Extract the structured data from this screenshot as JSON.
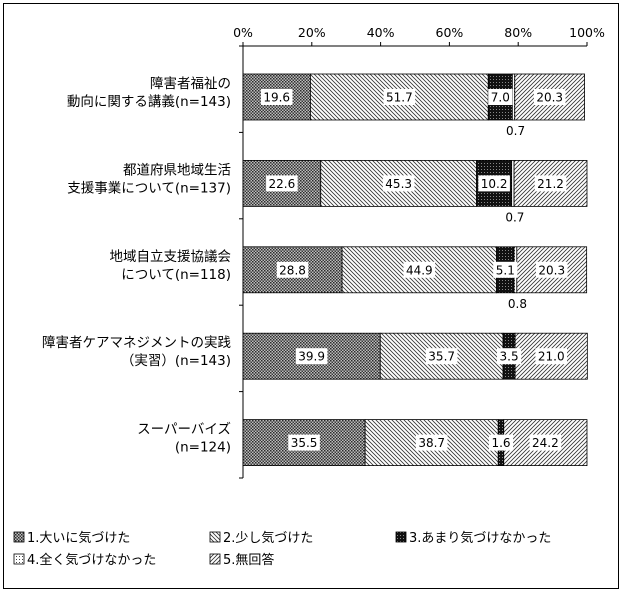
{
  "chart_data": {
    "type": "bar",
    "orientation": "horizontal",
    "stacked": "percent",
    "xlim": [
      0,
      100
    ],
    "x_ticks": [
      "0%",
      "20%",
      "40%",
      "60%",
      "80%",
      "100%"
    ],
    "x_tick_values": [
      0,
      20,
      40,
      60,
      80,
      100
    ],
    "categories": [
      {
        "lines": [
          "障害者福祉の",
          "動向に関する講義(n=143)"
        ]
      },
      {
        "lines": [
          "都道府県地域生活",
          "支援事業について(n=137)"
        ]
      },
      {
        "lines": [
          "地域自立支援協議会",
          "について(n=118)"
        ]
      },
      {
        "lines": [
          "障害者ケアマネジメントの実践",
          "（実習）(n=143)"
        ]
      },
      {
        "lines": [
          "スーパーバイズ",
          "(n=124)"
        ]
      }
    ],
    "series": [
      {
        "name": "1.大いに気づけた",
        "values": [
          19.6,
          22.6,
          28.8,
          39.9,
          35.5
        ]
      },
      {
        "name": "2.少し気づけた",
        "values": [
          51.7,
          45.3,
          44.9,
          35.7,
          38.7
        ]
      },
      {
        "name": "3.あまり気づけなかった",
        "values": [
          7.0,
          10.2,
          5.1,
          3.5,
          1.6
        ]
      },
      {
        "name": "4.全く気づけなかった",
        "values": [
          0.7,
          0.7,
          0.8,
          0,
          0
        ]
      },
      {
        "name": "5.無回答",
        "values": [
          20.3,
          21.2,
          20.3,
          21.0,
          24.2
        ]
      }
    ],
    "data_labels": [
      [
        "19.6",
        "51.7",
        "7.0",
        "0.7",
        "20.3"
      ],
      [
        "22.6",
        "45.3",
        "10.2",
        "0.7",
        "21.2"
      ],
      [
        "28.8",
        "44.9",
        "5.1",
        "0.8",
        "20.3"
      ],
      [
        "39.9",
        "35.7",
        "3.5",
        "",
        "21.0"
      ],
      [
        "35.5",
        "38.7",
        "1.6",
        "",
        "24.2"
      ]
    ],
    "legend_position": "bottom",
    "grid": false
  },
  "colors": {
    "s1": "#555555",
    "s2": "#ffffff",
    "s3": "#111111",
    "s4": "#ffffff",
    "s5": "#ffffff"
  }
}
